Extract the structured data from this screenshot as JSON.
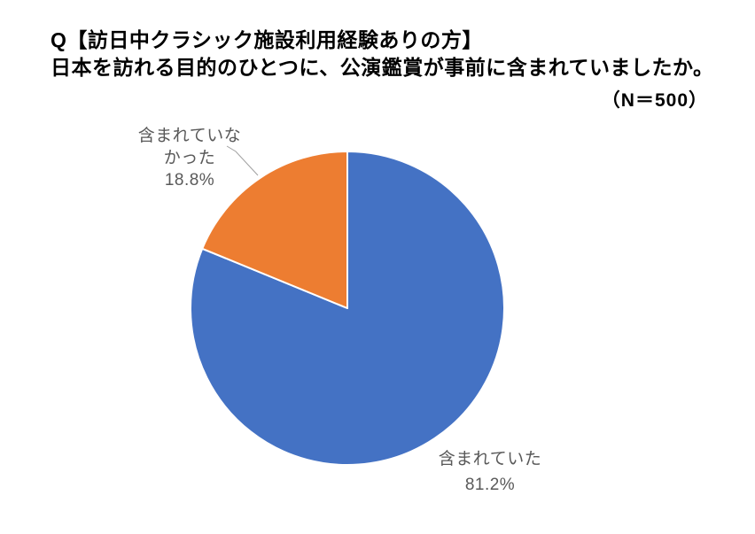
{
  "title": {
    "line1": "Q【訪日中クラシック施設利用経験ありの方】",
    "line2": "日本を訪れる目的のひとつに、公演鑑賞が事前に含まれていましたか。",
    "sample_size": "（N＝500）"
  },
  "chart_data": {
    "type": "pie",
    "title": "日本を訪れる目的のひとつに、公演鑑賞が事前に含まれていましたか。",
    "sample_n": 500,
    "categories": [
      "含まれていた",
      "含まれていなかった"
    ],
    "values": [
      81.2,
      18.8
    ],
    "unit": "%",
    "colors": [
      "#4472C4",
      "#ED7D31"
    ],
    "start_angle_deg": 0,
    "direction": "clockwise",
    "legend": "none",
    "labels": [
      {
        "category": "含まれていた",
        "value_label": "81.2%",
        "position": "outside-bottom-right",
        "leader_line": false
      },
      {
        "category": "含まれていなかった",
        "value_label": "18.8%",
        "position": "outside-top-left",
        "leader_line": true
      }
    ]
  },
  "display_labels": {
    "orange_line1": "含まれていな",
    "orange_line2": "かった",
    "orange_line3": "18.8%",
    "blue_line1": "含まれていた",
    "blue_line2": "81.2%"
  },
  "colors": {
    "slice_included": "#4472C4",
    "slice_not_included": "#ED7D31",
    "label_text": "#595959",
    "title_text": "#000000",
    "leader_line": "#A0A0A0",
    "slice_border": "#FFFFFF"
  }
}
